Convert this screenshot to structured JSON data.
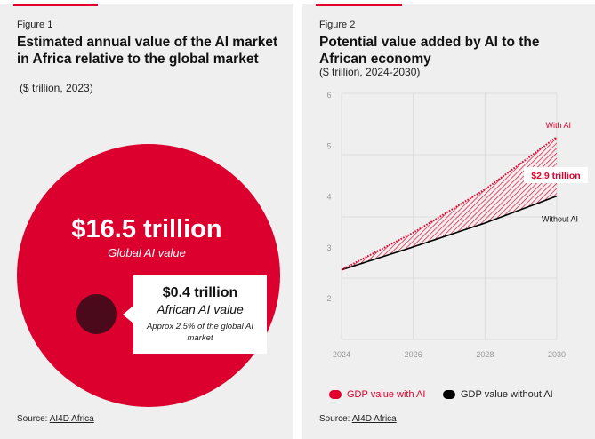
{
  "figure1": {
    "label": "Figure 1",
    "title": "Estimated annual value of the AI market in Africa relative to the global market",
    "subtitle": "($ trillion, 2023)",
    "global_value": "$16.5 trillion",
    "global_label": "Global AI value",
    "africa_value": "$0.4 trillion",
    "africa_label": "African AI value",
    "africa_note": "Approx 2.5% of the global AI market",
    "source_prefix": "Source:",
    "source_link": "AI4D Africa",
    "colors": {
      "global": "#db002d",
      "africa": "#4a0a1c"
    }
  },
  "figure2": {
    "label": "Figure 2",
    "title": "Potential value added by AI to the African economy",
    "subtitle": "($ trillion, 2024-2030)",
    "source_prefix": "Source:",
    "source_link": "AI4D Africa",
    "legend": [
      {
        "label": "GDP value with AI",
        "color": "#e0002b"
      },
      {
        "label": "GDP value without AI",
        "color": "#000000"
      }
    ]
  },
  "chart_data": {
    "type": "line",
    "title": "Potential value added by AI to the African economy",
    "x": [
      2024,
      2026,
      2028,
      2030
    ],
    "xticks": [
      "2024",
      "2026",
      "2028",
      "2030"
    ],
    "yticks": [
      "2",
      "3",
      "4",
      "5",
      "6"
    ],
    "ylim": [
      2,
      6
    ],
    "series": [
      {
        "name": "With AI",
        "values": [
          2.55,
          3.28,
          4.13,
          5.16
        ],
        "color": "#e0002b",
        "style": "dotted"
      },
      {
        "name": "Without AI",
        "values": [
          2.55,
          3.0,
          3.47,
          4.0
        ],
        "color": "#000000",
        "style": "solid"
      }
    ],
    "annotation": "$2.9 trillion",
    "grid": true,
    "legend_position": "bottom"
  }
}
